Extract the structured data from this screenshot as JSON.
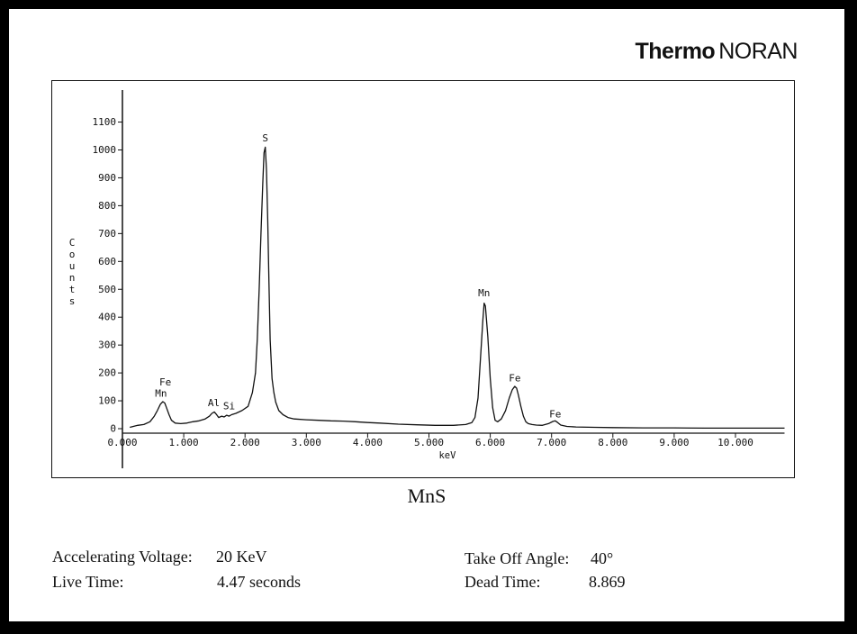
{
  "brand": {
    "bold": "Thermo",
    "regular": "NORAN"
  },
  "sample": "MnS",
  "info": {
    "accelerating_voltage_label": "Accelerating Voltage:",
    "accelerating_voltage_value": "20 KeV",
    "live_time_label": "Live Time:",
    "live_time_value": "4.47 seconds",
    "take_off_angle_label": "Take Off Angle:",
    "take_off_angle_value": "40°",
    "dead_time_label": "Dead Time:",
    "dead_time_value": "8.869"
  },
  "chart_data": {
    "type": "line",
    "xlabel": "keV",
    "ylabel": "Counts",
    "xlim": [
      0,
      10.8
    ],
    "ylim": [
      0,
      1150
    ],
    "x_ticks": [
      0,
      1,
      2,
      3,
      4,
      5,
      6,
      7,
      8,
      9,
      10
    ],
    "x_tick_labels": [
      "0.000",
      "1.000",
      "2.000",
      "3.000",
      "4.000",
      "5.000",
      "6.000",
      "7.000",
      "8.000",
      "9.000",
      "10.000"
    ],
    "y_ticks": [
      0,
      100,
      200,
      300,
      400,
      500,
      600,
      700,
      800,
      900,
      1000,
      1100
    ],
    "y_tick_labels": [
      "0",
      "100",
      "200",
      "300",
      "400",
      "500",
      "600",
      "700",
      "800",
      "900",
      "1000",
      "1100"
    ],
    "series": [
      {
        "x": [
          0.12,
          0.25,
          0.35,
          0.45,
          0.52,
          0.57,
          0.62,
          0.66,
          0.69,
          0.72,
          0.76,
          0.8,
          0.86,
          0.95,
          1.05,
          1.15,
          1.25,
          1.35,
          1.42,
          1.46,
          1.5,
          1.53,
          1.57,
          1.62,
          1.66,
          1.7,
          1.74,
          1.78,
          1.85,
          1.95,
          2.05,
          2.12,
          2.17,
          2.2,
          2.23,
          2.26,
          2.29,
          2.31,
          2.33,
          2.35,
          2.37,
          2.39,
          2.41,
          2.44,
          2.47,
          2.5,
          2.55,
          2.62,
          2.7,
          2.8,
          3.0,
          3.2,
          3.4,
          3.6,
          3.8,
          4.0,
          4.2,
          4.5,
          4.8,
          5.1,
          5.4,
          5.6,
          5.7,
          5.75,
          5.8,
          5.84,
          5.88,
          5.9,
          5.92,
          5.96,
          6.0,
          6.04,
          6.08,
          6.12,
          6.18,
          6.25,
          6.31,
          6.36,
          6.4,
          6.43,
          6.46,
          6.5,
          6.54,
          6.58,
          6.62,
          6.68,
          6.75,
          6.85,
          6.95,
          7.02,
          7.06,
          7.1,
          7.15,
          7.25,
          7.4,
          7.7,
          8.0,
          8.5,
          9.0,
          9.5,
          10.0,
          10.5,
          10.8
        ],
        "y": [
          5,
          12,
          15,
          25,
          45,
          65,
          88,
          97,
          92,
          75,
          50,
          30,
          20,
          18,
          20,
          25,
          28,
          35,
          45,
          55,
          60,
          52,
          40,
          45,
          42,
          48,
          45,
          50,
          55,
          65,
          80,
          130,
          200,
          320,
          500,
          700,
          880,
          990,
          1010,
          930,
          750,
          520,
          320,
          180,
          130,
          95,
          65,
          50,
          40,
          35,
          32,
          30,
          28,
          27,
          25,
          22,
          20,
          16,
          14,
          12,
          12,
          15,
          22,
          40,
          110,
          250,
          390,
          450,
          440,
          330,
          180,
          75,
          30,
          25,
          35,
          65,
          110,
          140,
          152,
          145,
          120,
          80,
          45,
          25,
          18,
          15,
          13,
          12,
          18,
          26,
          28,
          22,
          13,
          8,
          6,
          5,
          4,
          3,
          3,
          2,
          2,
          2,
          2
        ]
      }
    ],
    "peak_labels": [
      {
        "text": "Fe",
        "x": 0.7,
        "y": 155
      },
      {
        "text": "Mn",
        "x": 0.63,
        "y": 115
      },
      {
        "text": "Al",
        "x": 1.49,
        "y": 80
      },
      {
        "text": "Si",
        "x": 1.74,
        "y": 70
      },
      {
        "text": "S",
        "x": 2.33,
        "y": 1030
      },
      {
        "text": "Mn",
        "x": 5.9,
        "y": 475
      },
      {
        "text": "Fe",
        "x": 6.4,
        "y": 170
      },
      {
        "text": "Fe",
        "x": 7.06,
        "y": 40
      }
    ]
  }
}
